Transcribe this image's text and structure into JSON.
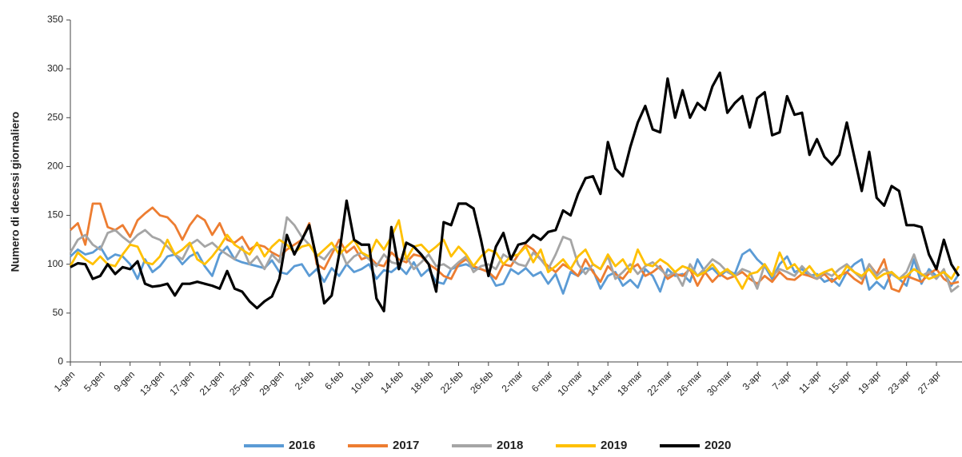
{
  "chart_data": {
    "type": "line",
    "y_label": "Numero di decessi giornaliero",
    "categories": [
      "1-gen",
      null,
      null,
      null,
      "5-gen",
      null,
      null,
      null,
      "9-gen",
      null,
      null,
      null,
      "13-gen",
      null,
      null,
      null,
      "17-gen",
      null,
      null,
      null,
      "21-gen",
      null,
      null,
      null,
      "25-gen",
      null,
      null,
      null,
      "29-gen",
      null,
      null,
      null,
      "2-feb",
      null,
      null,
      null,
      "6-feb",
      null,
      null,
      null,
      "10-feb",
      null,
      null,
      null,
      "14-feb",
      null,
      null,
      null,
      "18-feb",
      null,
      null,
      null,
      "22-feb",
      null,
      null,
      null,
      "26-feb",
      null,
      null,
      null,
      "2-mar",
      null,
      null,
      null,
      "6-mar",
      null,
      null,
      null,
      "10-mar",
      null,
      null,
      null,
      "14-mar",
      null,
      null,
      null,
      "18-mar",
      null,
      null,
      null,
      "22-mar",
      null,
      null,
      null,
      "26-mar",
      null,
      null,
      null,
      "30-mar",
      null,
      null,
      null,
      "3-apr",
      null,
      null,
      null,
      "7-apr",
      null,
      null,
      null,
      "11-apr",
      null,
      null,
      null,
      "15-apr",
      null,
      null,
      null,
      "19-apr",
      null,
      null,
      null,
      "23-apr",
      null,
      null,
      null,
      "27-apr",
      null,
      null,
      null
    ],
    "series": [
      {
        "name": "2016",
        "color": "#5b9bd5",
        "values": [
          108,
          115,
          110,
          112,
          118,
          105,
          110,
          108,
          100,
          85,
          105,
          92,
          98,
          108,
          110,
          100,
          108,
          112,
          98,
          88,
          110,
          118,
          105,
          102,
          100,
          98,
          96,
          104,
          92,
          90,
          98,
          100,
          88,
          95,
          82,
          96,
          88,
          100,
          92,
          95,
          100,
          85,
          94,
          92,
          98,
          90,
          102,
          88,
          95,
          82,
          80,
          95,
          98,
          100,
          96,
          95,
          92,
          78,
          80,
          95,
          90,
          96,
          88,
          92,
          80,
          90,
          70,
          92,
          88,
          96,
          94,
          75,
          88,
          92,
          78,
          84,
          76,
          95,
          88,
          72,
          95,
          88,
          90,
          82,
          105,
          92,
          96,
          88,
          94,
          90,
          110,
          115,
          105,
          98,
          85,
          100,
          108,
          92,
          95,
          88,
          90,
          82,
          85,
          78,
          92,
          100,
          105,
          74,
          82,
          75,
          92,
          85,
          78,
          105,
          80,
          95,
          88,
          92,
          78,
          90
        ]
      },
      {
        "name": "2017",
        "color": "#ed7d31",
        "values": [
          135,
          142,
          120,
          162,
          162,
          138,
          135,
          140,
          128,
          145,
          152,
          158,
          150,
          148,
          140,
          125,
          140,
          150,
          145,
          130,
          142,
          125,
          122,
          128,
          115,
          120,
          118,
          112,
          108,
          115,
          120,
          125,
          142,
          100,
          95,
          110,
          125,
          112,
          118,
          105,
          108,
          100,
          98,
          112,
          105,
          102,
          110,
          108,
          100,
          95,
          88,
          85,
          100,
          105,
          98,
          95,
          92,
          85,
          100,
          98,
          110,
          120,
          115,
          105,
          98,
          92,
          100,
          95,
          88,
          105,
          92,
          82,
          98,
          90,
          85,
          95,
          100,
          88,
          92,
          98,
          85,
          90,
          88,
          95,
          78,
          92,
          82,
          90,
          85,
          88,
          92,
          85,
          80,
          88,
          82,
          92,
          85,
          84,
          90,
          88,
          85,
          90,
          82,
          88,
          92,
          85,
          80,
          100,
          90,
          105,
          75,
          72,
          88,
          85,
          82,
          90,
          95,
          85,
          80,
          82
        ]
      },
      {
        "name": "2018",
        "color": "#a5a5a5",
        "values": [
          112,
          125,
          130,
          120,
          115,
          132,
          135,
          128,
          122,
          130,
          135,
          128,
          125,
          118,
          110,
          105,
          120,
          125,
          118,
          122,
          115,
          110,
          105,
          118,
          100,
          108,
          95,
          110,
          102,
          148,
          140,
          128,
          120,
          110,
          105,
          115,
          118,
          100,
          108,
          112,
          105,
          98,
          110,
          102,
          100,
          108,
          95,
          102,
          110,
          98,
          100,
          95,
          102,
          108,
          92,
          98,
          100,
          95,
          110,
          105,
          100,
          98,
          112,
          105,
          95,
          110,
          128,
          125,
          100,
          90,
          100,
          95,
          108,
          85,
          92,
          100,
          90,
          98,
          102,
          95,
          88,
          92,
          78,
          100,
          88,
          96,
          105,
          100,
          92,
          88,
          95,
          92,
          75,
          100,
          88,
          95,
          92,
          88,
          98,
          90,
          85,
          92,
          88,
          95,
          100,
          92,
          85,
          100,
          88,
          95,
          90,
          85,
          92,
          110,
          88,
          92,
          85,
          95,
          72,
          78
        ]
      },
      {
        "name": "2019",
        "color": "#ffc000",
        "values": [
          98,
          112,
          105,
          100,
          108,
          100,
          98,
          110,
          120,
          118,
          102,
          100,
          108,
          125,
          110,
          115,
          122,
          105,
          100,
          108,
          118,
          130,
          120,
          115,
          110,
          122,
          108,
          118,
          125,
          120,
          112,
          118,
          120,
          108,
          115,
          122,
          110,
          118,
          125,
          112,
          108,
          125,
          115,
          128,
          145,
          105,
          118,
          120,
          112,
          118,
          125,
          108,
          118,
          110,
          98,
          108,
          115,
          112,
          100,
          108,
          110,
          118,
          102,
          115,
          92,
          98,
          105,
          95,
          108,
          115,
          100,
          95,
          110,
          98,
          105,
          92,
          115,
          100,
          98,
          105,
          100,
          92,
          98,
          95,
          88,
          92,
          100,
          90,
          95,
          88,
          75,
          90,
          92,
          100,
          88,
          112,
          95,
          100,
          90,
          98,
          88,
          92,
          95,
          85,
          98,
          92,
          88,
          95,
          85,
          90,
          92,
          85,
          88,
          95,
          90,
          85,
          88,
          92,
          85,
          98
        ]
      },
      {
        "name": "2020",
        "color": "#000000",
        "values": [
          97,
          101,
          100,
          85,
          88,
          100,
          90,
          97,
          95,
          103,
          80,
          77,
          78,
          80,
          68,
          80,
          80,
          82,
          80,
          78,
          75,
          93,
          75,
          72,
          62,
          55,
          62,
          67,
          85,
          130,
          110,
          125,
          140,
          105,
          60,
          68,
          110,
          165,
          125,
          120,
          120,
          65,
          52,
          138,
          95,
          122,
          118,
          110,
          100,
          72,
          143,
          140,
          162,
          162,
          157,
          125,
          88,
          118,
          132,
          105,
          120,
          122,
          130,
          125,
          133,
          135,
          155,
          150,
          172,
          188,
          190,
          172,
          225,
          198,
          190,
          220,
          245,
          262,
          238,
          235,
          290,
          250,
          278,
          250,
          265,
          258,
          282,
          296,
          255,
          265,
          272,
          240,
          270,
          276,
          232,
          235,
          272,
          253,
          255,
          212,
          228,
          210,
          202,
          212,
          245,
          210,
          175,
          215,
          168,
          160,
          180,
          175,
          140,
          140,
          138,
          110,
          95,
          125,
          100,
          88
        ]
      }
    ],
    "ylim": [
      0,
      350
    ],
    "yticks": [
      0,
      50,
      100,
      150,
      200,
      250,
      300,
      350
    ],
    "grid": false,
    "legend": "bottom"
  }
}
